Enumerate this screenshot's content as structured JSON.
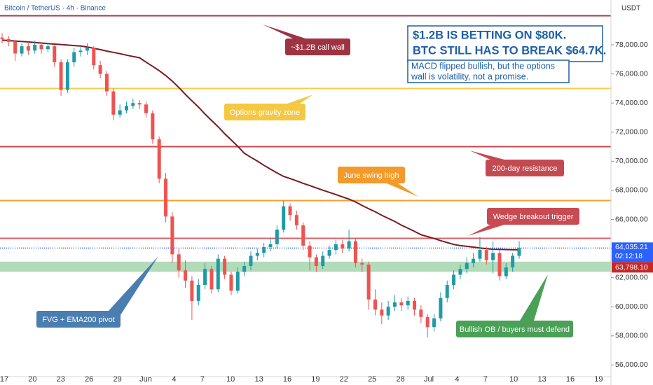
{
  "chart_data": {
    "type": "candlestick",
    "symbol_header": "Bitcoin / TetherUS · 4h · Binance",
    "currency": "USDT",
    "title_lines": [
      "$1.2B IS BETTING ON $80K.",
      "BTC STILL HAS TO BREAK $64.7K."
    ],
    "subtitle_lines": [
      "MACD flipped bullish, but the options",
      "wall is volatility, not a promise."
    ],
    "x_labels": [
      "17",
      "20",
      "23",
      "26",
      "29",
      "Jun",
      "4",
      "7",
      "10",
      "13",
      "16",
      "19",
      "22",
      "25",
      "28",
      "Jul",
      "4",
      "7",
      "10",
      "13",
      "16",
      "19"
    ],
    "ylim": [
      55200,
      81080
    ],
    "yticks": [
      {
        "value": 56000,
        "label": "56,000.00"
      },
      {
        "value": 58000,
        "label": "58,000.00"
      },
      {
        "value": 60000,
        "label": "60,000.00"
      },
      {
        "value": 62000,
        "label": "62,000.00"
      },
      {
        "value": 64000,
        "label": "64,000.00"
      },
      {
        "value": 66000,
        "label": "66,000.00"
      },
      {
        "value": 68000,
        "label": "68,000.00"
      },
      {
        "value": 70000,
        "label": "70,000.00"
      },
      {
        "value": 72000,
        "label": "72,000.00"
      },
      {
        "value": 74000,
        "label": "74,000.00"
      },
      {
        "value": 76000,
        "label": "76,000.00"
      },
      {
        "value": 78000,
        "label": "78,000.00"
      }
    ],
    "grid": false,
    "up_color": "#1f9aa6",
    "down_color": "#ef5350",
    "open": [
      78500,
      78400,
      78200,
      77400,
      77900,
      77600,
      78000,
      77700,
      77900,
      76800,
      74900,
      76800,
      77500,
      77600,
      77800,
      76600,
      76000,
      74800,
      73200,
      73500,
      73800,
      74000,
      73900,
      73300,
      71500,
      68800,
      66200,
      63600,
      62500,
      61800,
      60400,
      61500,
      62600,
      61200,
      63300,
      62200,
      61100,
      62400,
      62800,
      63500,
      63700,
      64100,
      64300,
      65300,
      66900,
      66300,
      65600,
      64200,
      63400,
      62800,
      63500,
      63900,
      64300,
      64000,
      64500,
      63000,
      62900,
      60500,
      59800,
      59400,
      60000,
      60300,
      60100,
      60400,
      59800,
      59300,
      58600,
      59200,
      60600,
      61500,
      62200,
      62600,
      63000,
      63300,
      63900,
      63200,
      63700,
      62100,
      62700,
      63500
    ],
    "high": [
      78800,
      78600,
      78300,
      78100,
      78200,
      78300,
      78200,
      78100,
      78000,
      77000,
      77000,
      77800,
      77900,
      78100,
      77900,
      76900,
      76200,
      75000,
      73900,
      74100,
      74300,
      74200,
      74100,
      73500,
      71700,
      69200,
      66500,
      64000,
      63200,
      62100,
      61900,
      63000,
      62800,
      63600,
      63500,
      62400,
      62700,
      63100,
      63800,
      64000,
      64400,
      64700,
      65600,
      67300,
      67100,
      66600,
      65800,
      64500,
      63600,
      63800,
      64200,
      64600,
      64600,
      65300,
      64700,
      63300,
      63100,
      61200,
      60300,
      60400,
      60800,
      60600,
      60700,
      60600,
      60100,
      59500,
      59500,
      61000,
      61800,
      62500,
      62900,
      63400,
      63700,
      64800,
      64100,
      64500,
      63900,
      63000,
      63700,
      64500
    ],
    "low": [
      78100,
      77900,
      76900,
      77200,
      77300,
      77400,
      77400,
      77500,
      76500,
      74500,
      74700,
      76500,
      77200,
      77300,
      76300,
      75700,
      74500,
      72800,
      73000,
      73300,
      73600,
      73600,
      73000,
      71200,
      68500,
      65800,
      63000,
      62000,
      61300,
      59100,
      60100,
      61200,
      60900,
      61000,
      61900,
      60800,
      60900,
      62100,
      62500,
      63200,
      63400,
      63800,
      64000,
      65100,
      65900,
      65300,
      63900,
      62500,
      62400,
      62600,
      63300,
      63600,
      63700,
      63800,
      62700,
      62400,
      59800,
      59400,
      58800,
      59100,
      59700,
      59700,
      59800,
      59400,
      58900,
      57900,
      58300,
      59000,
      60300,
      61200,
      61900,
      62300,
      62700,
      63100,
      62900,
      62300,
      61800,
      61900,
      62400,
      63300
    ],
    "close": [
      78400,
      78200,
      77400,
      77900,
      77600,
      78000,
      77700,
      77900,
      76800,
      74900,
      76800,
      77500,
      77600,
      77800,
      76600,
      76000,
      74800,
      73200,
      73500,
      73800,
      74000,
      73900,
      73300,
      71500,
      68800,
      66200,
      63600,
      62500,
      61800,
      60400,
      61500,
      62600,
      61200,
      63300,
      62200,
      61100,
      62400,
      62800,
      63500,
      63700,
      64100,
      64300,
      65300,
      66900,
      66300,
      65600,
      64200,
      63400,
      62800,
      63500,
      63900,
      64300,
      64000,
      64500,
      63000,
      62900,
      60500,
      59800,
      59400,
      60000,
      60300,
      60100,
      60400,
      59800,
      59300,
      58600,
      59200,
      60600,
      61500,
      62200,
      62600,
      63000,
      63300,
      63900,
      63200,
      63700,
      62100,
      62700,
      63500,
      64035.21
    ],
    "ema": {
      "color": "#7a1a22",
      "values": [
        78330,
        78290,
        78260,
        78230,
        78200,
        78160,
        78120,
        78090,
        78050,
        78020,
        77980,
        77950,
        77920,
        77850,
        77760,
        77670,
        77570,
        77480,
        77390,
        77290,
        77200,
        77110,
        76810,
        76520,
        76220,
        75890,
        75500,
        75070,
        74590,
        74150,
        73720,
        73240,
        72800,
        72370,
        71890,
        71460,
        71030,
        70550,
        70270,
        70010,
        69720,
        69460,
        69200,
        68960,
        68810,
        68650,
        68480,
        68330,
        68170,
        68010,
        67860,
        67710,
        67550,
        67400,
        67200,
        66960,
        66740,
        66530,
        66290,
        66070,
        65860,
        65610,
        65400,
        65180,
        64950,
        64820,
        64690,
        64540,
        64410,
        64280,
        64200,
        64150,
        64100,
        64040,
        63990,
        63950,
        63940,
        63930,
        63920,
        63910
      ]
    },
    "levels": [
      {
        "value": 80000,
        "color": "#a13d48"
      },
      {
        "value": 75000,
        "color": "#f6cd4a"
      },
      {
        "value": 71000,
        "color": "#c4474f"
      },
      {
        "value": 67300,
        "color": "#f5a033"
      },
      {
        "value": 64700,
        "color": "#d4646b"
      }
    ],
    "zone": {
      "low": 62400,
      "high": 63100,
      "color": "#7fc48a"
    },
    "last_price": {
      "value": 64035.21,
      "label": "64,035.21",
      "color": "#2962ff"
    },
    "countdown": "02:12:18",
    "second_price": {
      "value": 63798.1,
      "label": "63,798.10",
      "color": "#c62828"
    },
    "annotations": [
      {
        "text": "~$1.2B call wall",
        "color": "#9e3442"
      },
      {
        "text": "Options gravity zone",
        "color": "#f4c842"
      },
      {
        "text": "200-day resistance",
        "color": "#c44a52"
      },
      {
        "text": "June swing high",
        "color": "#f39a2a"
      },
      {
        "text": "Wedge breakout trigger",
        "color": "#c94a52"
      },
      {
        "text": "FVG + EMA200 pivot",
        "color": "#4a7db0"
      },
      {
        "text": "Bullish OB / buyers must defend",
        "color": "#4aa056"
      }
    ]
  }
}
